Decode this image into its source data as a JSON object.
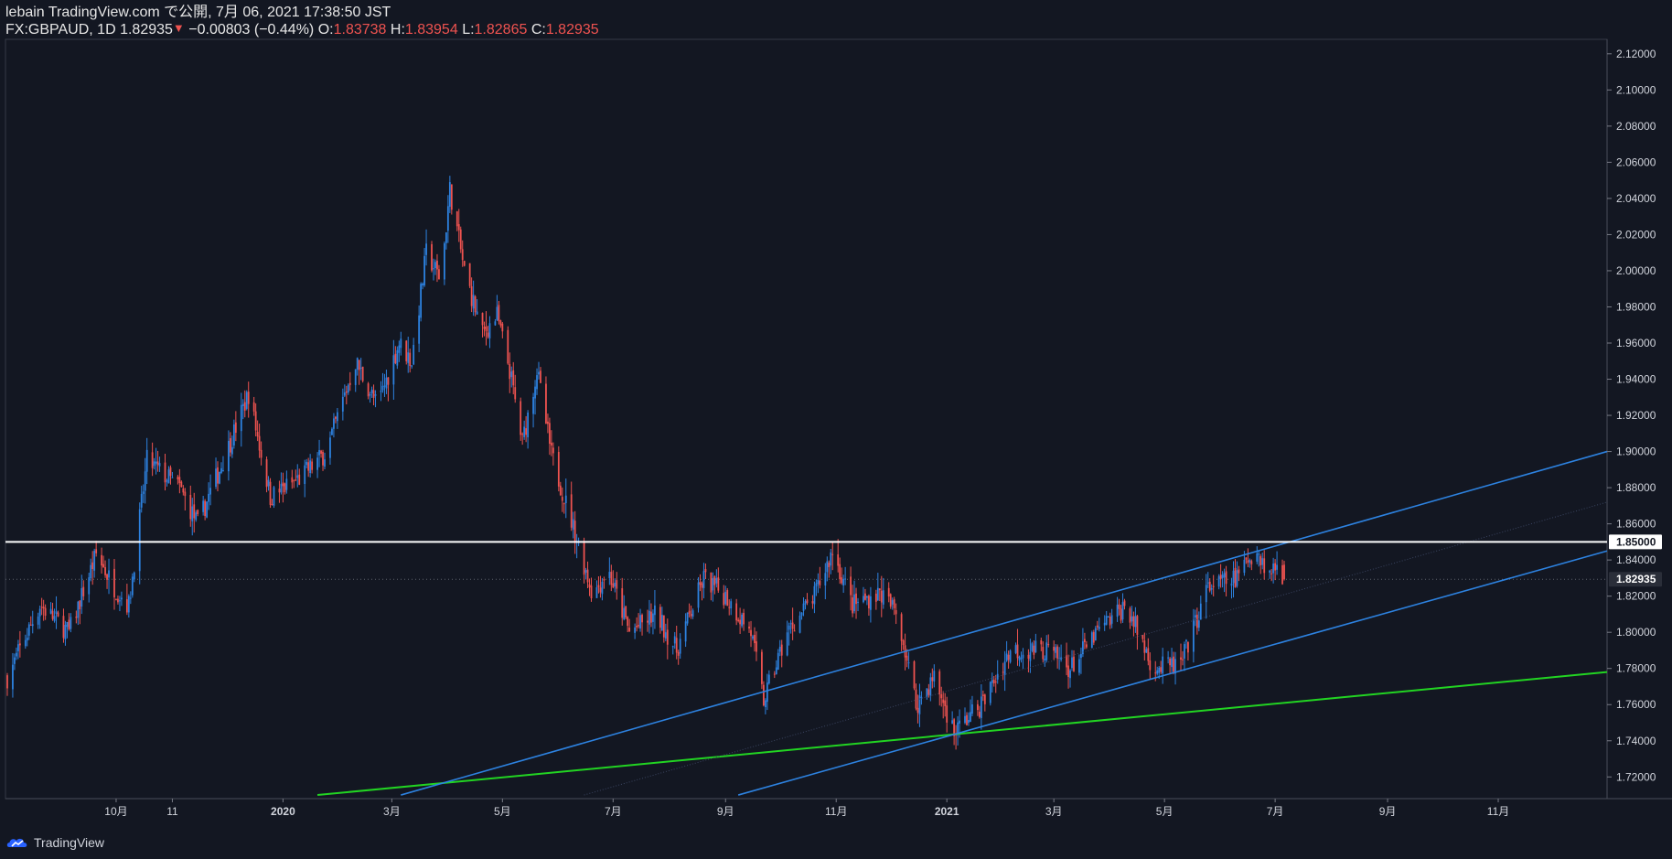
{
  "header": {
    "publisher": "lebain TradingView.com で公開, 7月 06, 2021 17:38:50 JST",
    "symbol": "FX:GBPAUD, 1D",
    "last": "1.82935",
    "change_arrow": "▼",
    "change": "−0.00803 (−0.44%)",
    "o_label": "O:",
    "o_value": "1.83738",
    "h_label": "H:",
    "h_value": "1.83954",
    "l_label": "L:",
    "l_value": "1.82865",
    "c_label": "C:",
    "c_value": "1.82935"
  },
  "footer": {
    "brand": "TradingView",
    "logo_icon": "tradingview-cloud-icon"
  },
  "colors": {
    "background": "#131722",
    "up": "#2d82e0",
    "down": "#ef5350",
    "channel": "#2d82e0",
    "trendline": "#22d422",
    "resistance": "#ffffff",
    "axis_text": "#d1d4dc"
  },
  "chart_data": {
    "type": "candlestick",
    "symbol": "FX:GBPAUD",
    "timeframe": "1D",
    "ylim": [
      1.708,
      2.128
    ],
    "y_ticks": [
      1.72,
      1.74,
      1.76,
      1.78,
      1.8,
      1.82,
      1.84,
      1.86,
      1.88,
      1.9,
      1.92,
      1.94,
      1.96,
      1.98,
      2.0,
      2.02,
      2.04,
      2.06,
      2.08,
      2.1,
      2.12
    ],
    "y_tick_labels": [
      "1.72000",
      "1.74000",
      "1.76000",
      "1.78000",
      "1.80000",
      "1.82000",
      "1.84000",
      "1.86000",
      "1.88000",
      "1.90000",
      "1.92000",
      "1.94000",
      "1.96000",
      "1.98000",
      "2.00000",
      "2.02000",
      "2.04000",
      "2.06000",
      "2.08000",
      "2.10000",
      "2.12000"
    ],
    "x_range": [
      "2019-08-01",
      "2021-12-31"
    ],
    "x_ticks": [
      {
        "date": "2019-10-01",
        "label": "10月"
      },
      {
        "date": "2019-11-01",
        "label": "11"
      },
      {
        "date": "2020-01-01",
        "label": "2020"
      },
      {
        "date": "2020-03-01",
        "label": "3月"
      },
      {
        "date": "2020-05-01",
        "label": "5月"
      },
      {
        "date": "2020-07-01",
        "label": "7月"
      },
      {
        "date": "2020-09-01",
        "label": "9月"
      },
      {
        "date": "2020-11-01",
        "label": "11月"
      },
      {
        "date": "2021-01-01",
        "label": "2021"
      },
      {
        "date": "2021-03-01",
        "label": "3月"
      },
      {
        "date": "2021-05-01",
        "label": "5月"
      },
      {
        "date": "2021-07-01",
        "label": "7月"
      },
      {
        "date": "2021-09-01",
        "label": "9月"
      },
      {
        "date": "2021-11-01",
        "label": "11月"
      }
    ],
    "key_path": [
      {
        "date": "2019-08-02",
        "price": 1.775
      },
      {
        "date": "2019-08-20",
        "price": 1.815
      },
      {
        "date": "2019-09-05",
        "price": 1.8
      },
      {
        "date": "2019-09-20",
        "price": 1.843
      },
      {
        "date": "2019-09-30",
        "price": 1.825
      },
      {
        "date": "2019-10-08",
        "price": 1.815
      },
      {
        "date": "2019-10-18",
        "price": 1.895
      },
      {
        "date": "2019-11-05",
        "price": 1.88
      },
      {
        "date": "2019-11-15",
        "price": 1.86
      },
      {
        "date": "2019-12-01",
        "price": 1.9
      },
      {
        "date": "2019-12-13",
        "price": 1.932
      },
      {
        "date": "2019-12-25",
        "price": 1.875
      },
      {
        "date": "2020-01-10",
        "price": 1.885
      },
      {
        "date": "2020-01-25",
        "price": 1.9
      },
      {
        "date": "2020-02-10",
        "price": 1.95
      },
      {
        "date": "2020-02-22",
        "price": 1.925
      },
      {
        "date": "2020-03-05",
        "price": 1.96
      },
      {
        "date": "2020-03-12",
        "price": 1.95
      },
      {
        "date": "2020-03-20",
        "price": 2.01
      },
      {
        "date": "2020-03-28",
        "price": 1.995
      },
      {
        "date": "2020-04-02",
        "price": 2.045
      },
      {
        "date": "2020-04-10",
        "price": 2.0
      },
      {
        "date": "2020-04-20",
        "price": 1.965
      },
      {
        "date": "2020-04-28",
        "price": 1.975
      },
      {
        "date": "2020-05-05",
        "price": 1.945
      },
      {
        "date": "2020-05-12",
        "price": 1.905
      },
      {
        "date": "2020-05-20",
        "price": 1.945
      },
      {
        "date": "2020-05-28",
        "price": 1.898
      },
      {
        "date": "2020-06-10",
        "price": 1.855
      },
      {
        "date": "2020-06-20",
        "price": 1.82
      },
      {
        "date": "2020-06-28",
        "price": 1.835
      },
      {
        "date": "2020-07-10",
        "price": 1.8
      },
      {
        "date": "2020-07-25",
        "price": 1.81
      },
      {
        "date": "2020-08-05",
        "price": 1.79
      },
      {
        "date": "2020-08-20",
        "price": 1.83
      },
      {
        "date": "2020-09-01",
        "price": 1.82
      },
      {
        "date": "2020-09-15",
        "price": 1.8
      },
      {
        "date": "2020-09-22",
        "price": 1.762
      },
      {
        "date": "2020-10-05",
        "price": 1.8
      },
      {
        "date": "2020-10-20",
        "price": 1.82
      },
      {
        "date": "2020-10-30",
        "price": 1.845
      },
      {
        "date": "2020-11-10",
        "price": 1.815
      },
      {
        "date": "2020-11-25",
        "price": 1.822
      },
      {
        "date": "2020-12-05",
        "price": 1.81
      },
      {
        "date": "2020-12-15",
        "price": 1.76
      },
      {
        "date": "2020-12-25",
        "price": 1.775
      },
      {
        "date": "2021-01-05",
        "price": 1.745
      },
      {
        "date": "2021-01-20",
        "price": 1.76
      },
      {
        "date": "2021-02-05",
        "price": 1.79
      },
      {
        "date": "2021-02-25",
        "price": 1.79
      },
      {
        "date": "2021-03-10",
        "price": 1.78
      },
      {
        "date": "2021-03-25",
        "price": 1.8
      },
      {
        "date": "2021-04-10",
        "price": 1.815
      },
      {
        "date": "2021-04-25",
        "price": 1.78
      },
      {
        "date": "2021-05-10",
        "price": 1.782
      },
      {
        "date": "2021-05-25",
        "price": 1.825
      },
      {
        "date": "2021-06-10",
        "price": 1.83
      },
      {
        "date": "2021-06-20",
        "price": 1.847
      },
      {
        "date": "2021-06-28",
        "price": 1.832
      },
      {
        "date": "2021-07-02",
        "price": 1.838
      },
      {
        "date": "2021-07-06",
        "price": 1.829
      }
    ],
    "last_bar": {
      "date": "2021-07-06",
      "open": 1.83738,
      "high": 1.83954,
      "low": 1.82865,
      "close": 1.82935
    },
    "last_price_label": "1.82935",
    "horizontal_level": {
      "price": 1.85,
      "label": "1.85000"
    },
    "channel_lines": [
      {
        "from": {
          "date": "2020-03-06",
          "price": 1.71
        },
        "to": {
          "date": "2021-12-31",
          "price": 1.9
        }
      },
      {
        "from": {
          "date": "2020-09-08",
          "price": 1.71
        },
        "to": {
          "date": "2021-12-31",
          "price": 1.845
        }
      }
    ],
    "channel_midline": {
      "from": {
        "date": "2020-06-15",
        "price": 1.71
      },
      "to": {
        "date": "2021-12-31",
        "price": 1.872
      }
    },
    "trendline": {
      "from": {
        "date": "2020-01-20",
        "price": 1.71
      },
      "to": {
        "date": "2021-12-31",
        "price": 1.778
      }
    },
    "grid": false
  }
}
